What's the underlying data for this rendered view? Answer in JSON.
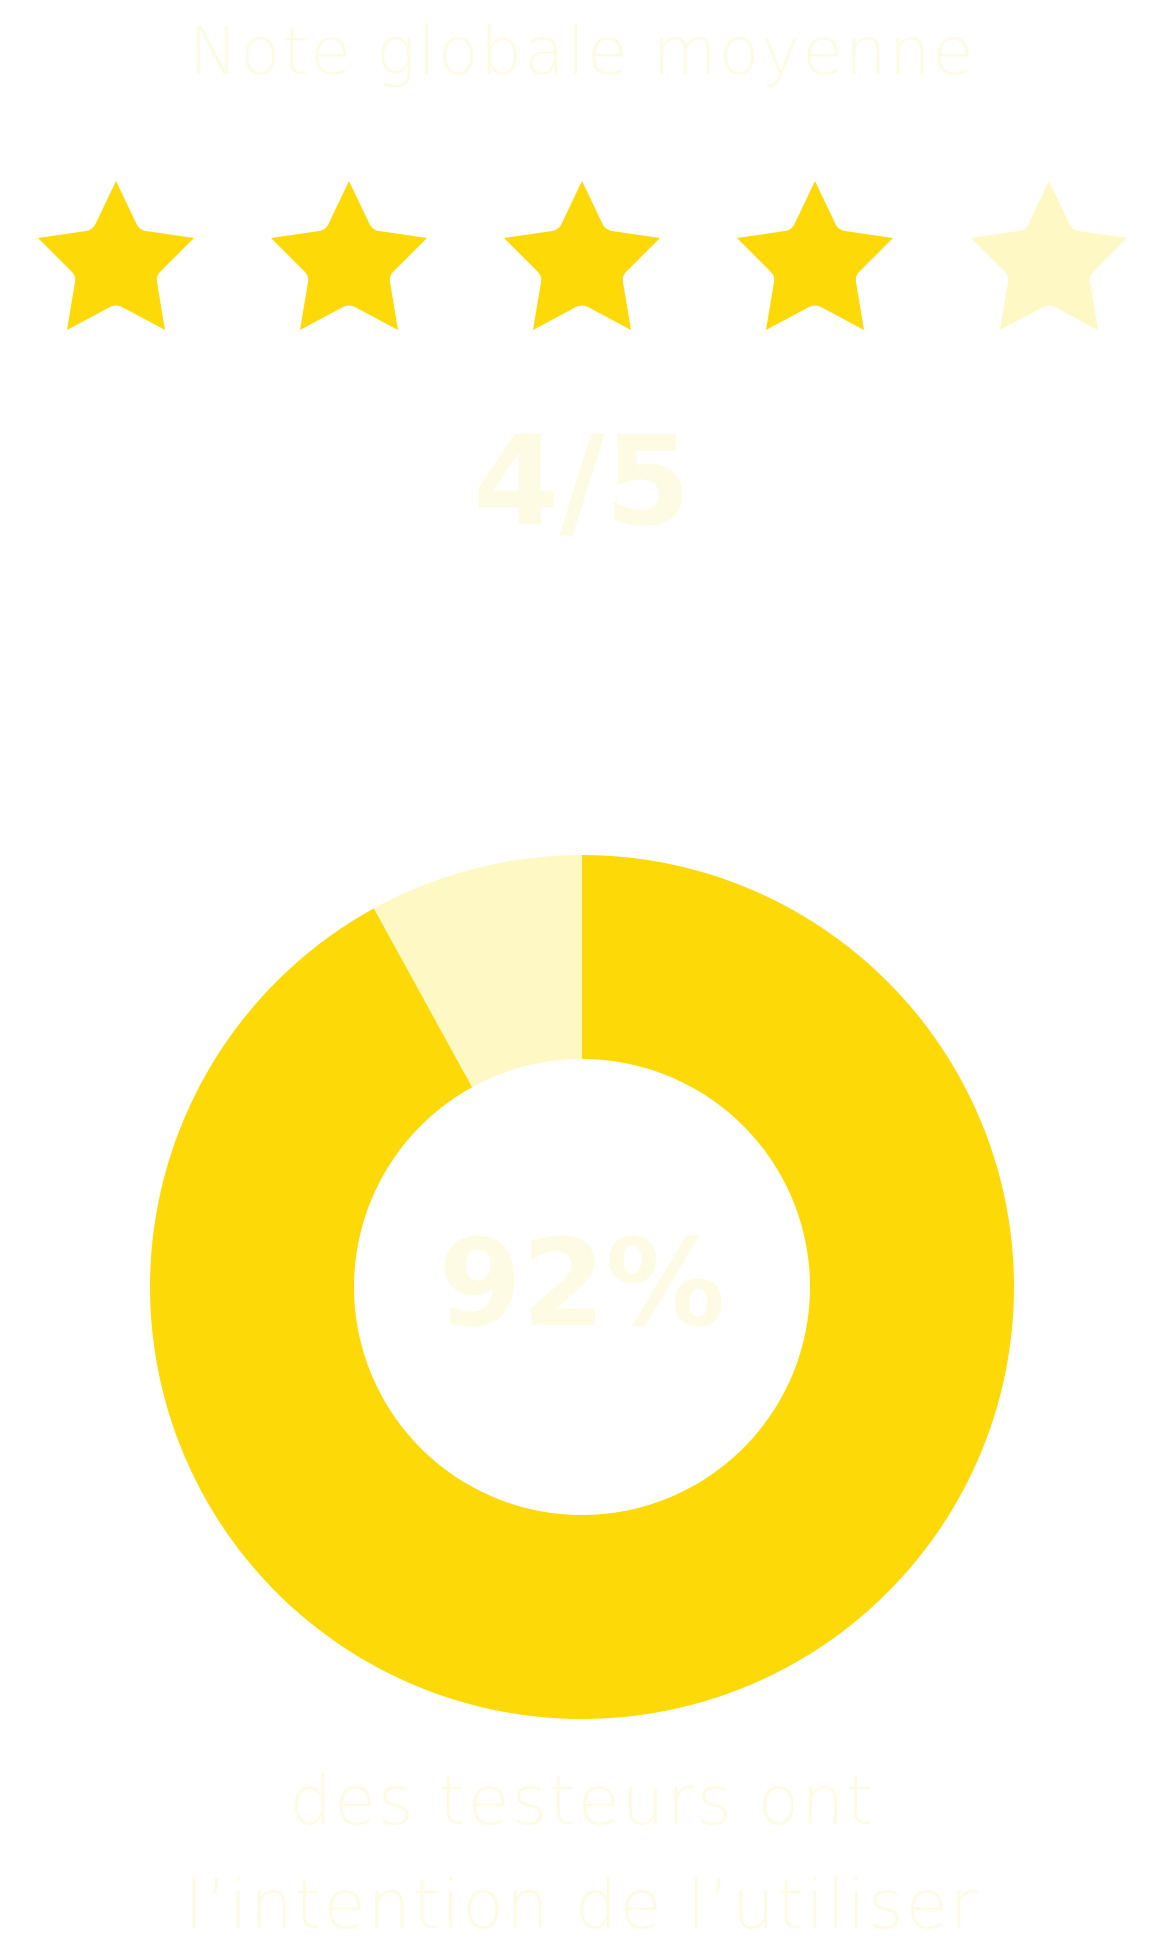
{
  "title": "Note globale moyenne",
  "rating": {
    "value": 4,
    "max": 5,
    "label": "4/5"
  },
  "chart_data": {
    "type": "pie",
    "style": "donut",
    "slices": [
      {
        "value": 92,
        "color": "#FDD908"
      },
      {
        "value": 8,
        "color": "#FDF8C4"
      }
    ],
    "center_label": "92%",
    "caption": [
      "des testeurs ont",
      "l’intention de l’utiliser"
    ]
  },
  "colors": {
    "accent": "#FDD908",
    "accent_light": "#FDF8C4",
    "text": "#FEFBE4",
    "background": "#FFFFFF"
  },
  "icons": {
    "rating_star": "star-icon"
  }
}
